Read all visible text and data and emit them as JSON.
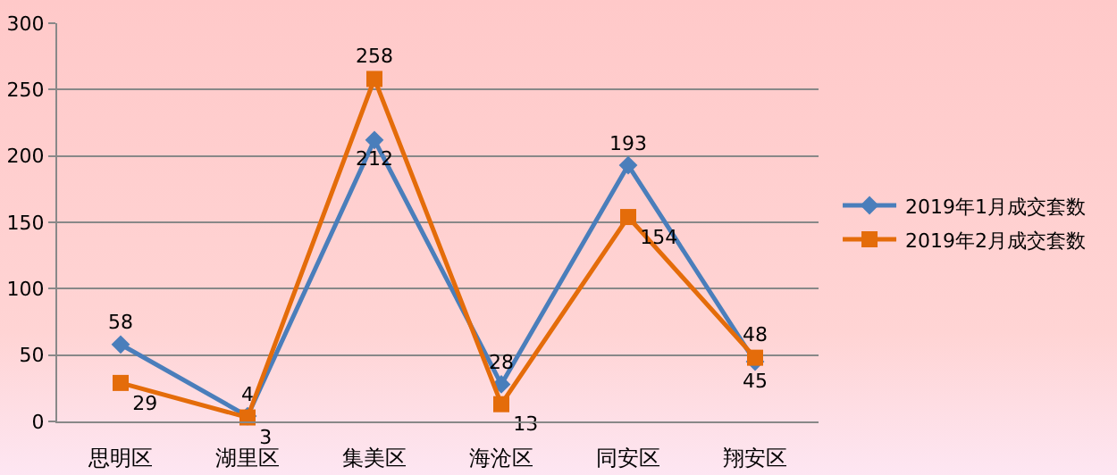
{
  "chart_data": {
    "type": "line",
    "categories": [
      "思明区",
      "湖里区",
      "集美区",
      "海沧区",
      "同安区",
      "翔安区"
    ],
    "series": [
      {
        "name": "2019年1月成交套数",
        "color": "#4a7ebb",
        "marker": "diamond",
        "values": [
          58,
          4,
          212,
          28,
          193,
          45
        ]
      },
      {
        "name": "2019年2月成交套数",
        "color": "#e46c0a",
        "marker": "square",
        "values": [
          29,
          3,
          258,
          13,
          154,
          48
        ]
      }
    ],
    "ylim": [
      0,
      300
    ],
    "yticks": [
      0,
      50,
      100,
      150,
      200,
      250,
      300
    ],
    "grid": "y",
    "legend": "right",
    "data_labels": true
  }
}
